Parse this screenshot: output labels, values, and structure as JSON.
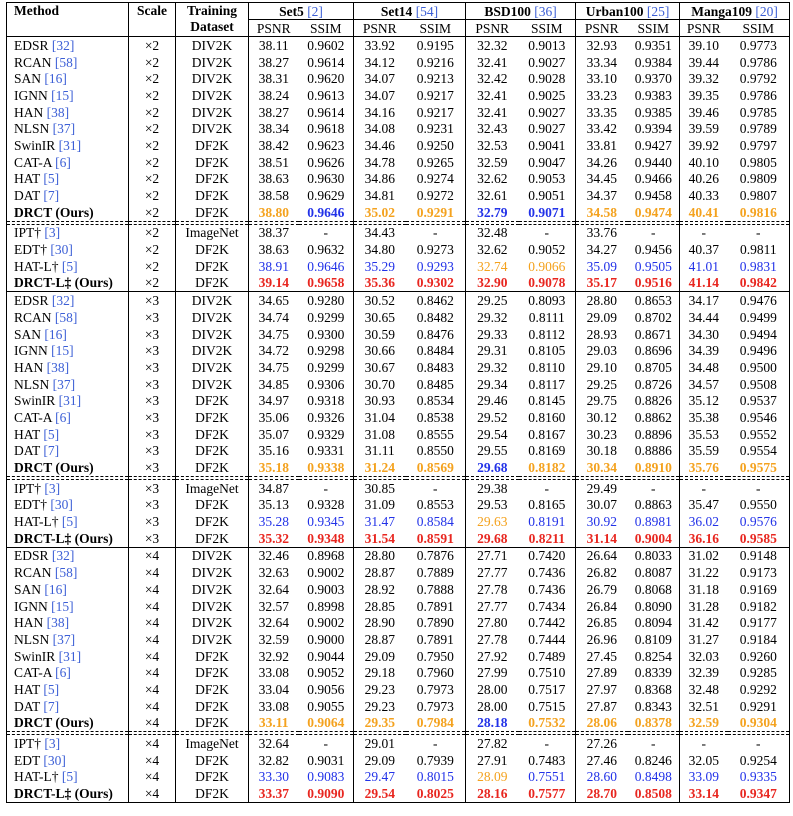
{
  "colors": {
    "red": "#e8261f",
    "blue": "#2232e8",
    "orange": "#f4a21e",
    "citation": "#3c5fd6"
  },
  "header": {
    "method": "Method",
    "scale": "Scale",
    "training": "Training",
    "dataset": "Dataset",
    "benchmarks": [
      {
        "name": "Set5",
        "ref": "[2]"
      },
      {
        "name": "Set14",
        "ref": "[54]"
      },
      {
        "name": "BSD100",
        "ref": "[36]"
      },
      {
        "name": "Urban100",
        "ref": "[25]"
      },
      {
        "name": "Manga109",
        "ref": "[20]"
      }
    ],
    "metrics": [
      "PSNR",
      "SSIM"
    ]
  },
  "sections": [
    {
      "main": [
        {
          "method": "EDSR",
          "ref": "[32]",
          "scale": "×2",
          "dataset": "DIV2K",
          "values": [
            "38.11",
            "0.9602",
            "33.92",
            "0.9195",
            "32.32",
            "0.9013",
            "32.93",
            "0.9351",
            "39.10",
            "0.9773"
          ]
        },
        {
          "method": "RCAN",
          "ref": "[58]",
          "scale": "×2",
          "dataset": "DIV2K",
          "values": [
            "38.27",
            "0.9614",
            "34.12",
            "0.9216",
            "32.41",
            "0.9027",
            "33.34",
            "0.9384",
            "39.44",
            "0.9786"
          ]
        },
        {
          "method": "SAN",
          "ref": "[16]",
          "scale": "×2",
          "dataset": "DIV2K",
          "values": [
            "38.31",
            "0.9620",
            "34.07",
            "0.9213",
            "32.42",
            "0.9028",
            "33.10",
            "0.9370",
            "39.32",
            "0.9792"
          ]
        },
        {
          "method": "IGNN",
          "ref": "[15]",
          "scale": "×2",
          "dataset": "DIV2K",
          "values": [
            "38.24",
            "0.9613",
            "34.07",
            "0.9217",
            "32.41",
            "0.9025",
            "33.23",
            "0.9383",
            "39.35",
            "0.9786"
          ]
        },
        {
          "method": "HAN",
          "ref": "[38]",
          "scale": "×2",
          "dataset": "DIV2K",
          "values": [
            "38.27",
            "0.9614",
            "34.16",
            "0.9217",
            "32.41",
            "0.9027",
            "33.35",
            "0.9385",
            "39.46",
            "0.9785"
          ]
        },
        {
          "method": "NLSN",
          "ref": "[37]",
          "scale": "×2",
          "dataset": "DIV2K",
          "values": [
            "38.34",
            "0.9618",
            "34.08",
            "0.9231",
            "32.43",
            "0.9027",
            "33.42",
            "0.9394",
            "39.59",
            "0.9789"
          ]
        },
        {
          "method": "SwinIR",
          "ref": "[31]",
          "scale": "×2",
          "dataset": "DF2K",
          "values": [
            "38.42",
            "0.9623",
            "34.46",
            "0.9250",
            "32.53",
            "0.9041",
            "33.81",
            "0.9427",
            "39.92",
            "0.9797"
          ]
        },
        {
          "method": "CAT-A",
          "ref": "[6]",
          "scale": "×2",
          "dataset": "DF2K",
          "values": [
            "38.51",
            "0.9626",
            "34.78",
            "0.9265",
            "32.59",
            "0.9047",
            "34.26",
            "0.9440",
            "40.10",
            "0.9805"
          ]
        },
        {
          "method": "HAT",
          "ref": "[5]",
          "scale": "×2",
          "dataset": "DF2K",
          "values": [
            "38.63",
            "0.9630",
            "34.86",
            "0.9274",
            "32.62",
            "0.9053",
            "34.45",
            "0.9466",
            "40.26",
            "0.9809"
          ]
        },
        {
          "method": "DAT",
          "ref": "[7]",
          "scale": "×2",
          "dataset": "DF2K",
          "values": [
            "38.58",
            "0.9629",
            "34.81",
            "0.9272",
            "32.61",
            "0.9051",
            "34.37",
            "0.9458",
            "40.33",
            "0.9807"
          ]
        },
        {
          "method": "DRCT (Ours)",
          "scale": "×2",
          "dataset": "DF2K",
          "bold": true,
          "values": [
            "38.80",
            "0.9646",
            "35.02",
            "0.9291",
            "32.79",
            "0.9071",
            "34.58",
            "0.9474",
            "40.41",
            "0.9816"
          ],
          "hl": [
            "orange",
            "blue",
            "orange",
            "orange",
            "blue",
            "blue",
            "orange",
            "orange",
            "orange",
            "orange"
          ]
        }
      ],
      "extended": [
        {
          "method": "IPT†",
          "ref": "[3]",
          "scale": "×2",
          "dataset": "ImageNet",
          "values": [
            "38.37",
            "-",
            "34.43",
            "-",
            "32.48",
            "-",
            "33.76",
            "-",
            "-",
            "-"
          ]
        },
        {
          "method": "EDT†",
          "ref": "[30]",
          "scale": "×2",
          "dataset": "DF2K",
          "values": [
            "38.63",
            "0.9632",
            "34.80",
            "0.9273",
            "32.62",
            "0.9052",
            "34.27",
            "0.9456",
            "40.37",
            "0.9811"
          ]
        },
        {
          "method": "HAT-L†",
          "ref": "[5]",
          "scale": "×2",
          "dataset": "DF2K",
          "values": [
            "38.91",
            "0.9646",
            "35.29",
            "0.9293",
            "32.74",
            "0.9066",
            "35.09",
            "0.9505",
            "41.01",
            "0.9831"
          ],
          "hl": [
            "blue",
            "blue",
            "blue",
            "blue",
            "orange",
            "orange",
            "blue",
            "blue",
            "blue",
            "blue"
          ]
        },
        {
          "method": "DRCT-L‡ (Ours)",
          "scale": "×2",
          "dataset": "DF2K",
          "bold": true,
          "values": [
            "39.14",
            "0.9658",
            "35.36",
            "0.9302",
            "32.90",
            "0.9078",
            "35.17",
            "0.9516",
            "41.14",
            "0.9842"
          ],
          "hl": [
            "red",
            "red",
            "red",
            "red",
            "red",
            "red",
            "red",
            "red",
            "red",
            "red"
          ]
        }
      ]
    },
    {
      "main": [
        {
          "method": "EDSR",
          "ref": "[32]",
          "scale": "×3",
          "dataset": "DIV2K",
          "values": [
            "34.65",
            "0.9280",
            "30.52",
            "0.8462",
            "29.25",
            "0.8093",
            "28.80",
            "0.8653",
            "34.17",
            "0.9476"
          ]
        },
        {
          "method": "RCAN",
          "ref": "[58]",
          "scale": "×3",
          "dataset": "DIV2K",
          "values": [
            "34.74",
            "0.9299",
            "30.65",
            "0.8482",
            "29.32",
            "0.8111",
            "29.09",
            "0.8702",
            "34.44",
            "0.9499"
          ]
        },
        {
          "method": "SAN",
          "ref": "[16]",
          "scale": "×3",
          "dataset": "DIV2K",
          "values": [
            "34.75",
            "0.9300",
            "30.59",
            "0.8476",
            "29.33",
            "0.8112",
            "28.93",
            "0.8671",
            "34.30",
            "0.9494"
          ]
        },
        {
          "method": "IGNN",
          "ref": "[15]",
          "scale": "×3",
          "dataset": "DIV2K",
          "values": [
            "34.72",
            "0.9298",
            "30.66",
            "0.8484",
            "29.31",
            "0.8105",
            "29.03",
            "0.8696",
            "34.39",
            "0.9496"
          ]
        },
        {
          "method": "HAN",
          "ref": "[38]",
          "scale": "×3",
          "dataset": "DIV2K",
          "values": [
            "34.75",
            "0.9299",
            "30.67",
            "0.8483",
            "29.32",
            "0.8110",
            "29.10",
            "0.8705",
            "34.48",
            "0.9500"
          ]
        },
        {
          "method": "NLSN",
          "ref": "[37]",
          "scale": "×3",
          "dataset": "DIV2K",
          "values": [
            "34.85",
            "0.9306",
            "30.70",
            "0.8485",
            "29.34",
            "0.8117",
            "29.25",
            "0.8726",
            "34.57",
            "0.9508"
          ]
        },
        {
          "method": "SwinIR",
          "ref": "[31]",
          "scale": "×3",
          "dataset": "DF2K",
          "values": [
            "34.97",
            "0.9318",
            "30.93",
            "0.8534",
            "29.46",
            "0.8145",
            "29.75",
            "0.8826",
            "35.12",
            "0.9537"
          ]
        },
        {
          "method": "CAT-A",
          "ref": "[6]",
          "scale": "×3",
          "dataset": "DF2K",
          "values": [
            "35.06",
            "0.9326",
            "31.04",
            "0.8538",
            "29.52",
            "0.8160",
            "30.12",
            "0.8862",
            "35.38",
            "0.9546"
          ]
        },
        {
          "method": "HAT",
          "ref": "[5]",
          "scale": "×3",
          "dataset": "DF2K",
          "values": [
            "35.07",
            "0.9329",
            "31.08",
            "0.8555",
            "29.54",
            "0.8167",
            "30.23",
            "0.8896",
            "35.53",
            "0.9552"
          ]
        },
        {
          "method": "DAT",
          "ref": "[7]",
          "scale": "×3",
          "dataset": "DF2K",
          "values": [
            "35.16",
            "0.9331",
            "31.11",
            "0.8550",
            "29.55",
            "0.8169",
            "30.18",
            "0.8886",
            "35.59",
            "0.9554"
          ]
        },
        {
          "method": "DRCT (Ours)",
          "scale": "×3",
          "dataset": "DF2K",
          "bold": true,
          "values": [
            "35.18",
            "0.9338",
            "31.24",
            "0.8569",
            "29.68",
            "0.8182",
            "30.34",
            "0.8910",
            "35.76",
            "0.9575"
          ],
          "hl": [
            "orange",
            "orange",
            "orange",
            "orange",
            "blue",
            "orange",
            "orange",
            "orange",
            "orange",
            "orange"
          ]
        }
      ],
      "extended": [
        {
          "method": "IPT†",
          "ref": "[3]",
          "scale": "×3",
          "dataset": "ImageNet",
          "values": [
            "34.87",
            "-",
            "30.85",
            "-",
            "29.38",
            "-",
            "29.49",
            "-",
            "-",
            "-"
          ]
        },
        {
          "method": "EDT†",
          "ref": "[30]",
          "scale": "×3",
          "dataset": "DF2K",
          "values": [
            "35.13",
            "0.9328",
            "31.09",
            "0.8553",
            "29.53",
            "0.8165",
            "30.07",
            "0.8863",
            "35.47",
            "0.9550"
          ]
        },
        {
          "method": "HAT-L†",
          "ref": "[5]",
          "scale": "×3",
          "dataset": "DF2K",
          "values": [
            "35.28",
            "0.9345",
            "31.47",
            "0.8584",
            "29.63",
            "0.8191",
            "30.92",
            "0.8981",
            "36.02",
            "0.9576"
          ],
          "hl": [
            "blue",
            "blue",
            "blue",
            "blue",
            "orange",
            "blue",
            "blue",
            "blue",
            "blue",
            "blue"
          ]
        },
        {
          "method": "DRCT-L‡ (Ours)",
          "scale": "×3",
          "dataset": "DF2K",
          "bold": true,
          "values": [
            "35.32",
            "0.9348",
            "31.54",
            "0.8591",
            "29.68",
            "0.8211",
            "31.14",
            "0.9004",
            "36.16",
            "0.9585"
          ],
          "hl": [
            "red",
            "red",
            "red",
            "red",
            "red",
            "red",
            "red",
            "red",
            "red",
            "red"
          ]
        }
      ]
    },
    {
      "main": [
        {
          "method": "EDSR",
          "ref": "[32]",
          "scale": "×4",
          "dataset": "DIV2K",
          "values": [
            "32.46",
            "0.8968",
            "28.80",
            "0.7876",
            "27.71",
            "0.7420",
            "26.64",
            "0.8033",
            "31.02",
            "0.9148"
          ]
        },
        {
          "method": "RCAN",
          "ref": "[58]",
          "scale": "×4",
          "dataset": "DIV2K",
          "values": [
            "32.63",
            "0.9002",
            "28.87",
            "0.7889",
            "27.77",
            "0.7436",
            "26.82",
            "0.8087",
            "31.22",
            "0.9173"
          ]
        },
        {
          "method": "SAN",
          "ref": "[16]",
          "scale": "×4",
          "dataset": "DIV2K",
          "values": [
            "32.64",
            "0.9003",
            "28.92",
            "0.7888",
            "27.78",
            "0.7436",
            "26.79",
            "0.8068",
            "31.18",
            "0.9169"
          ]
        },
        {
          "method": "IGNN",
          "ref": "[15]",
          "scale": "×4",
          "dataset": "DIV2K",
          "values": [
            "32.57",
            "0.8998",
            "28.85",
            "0.7891",
            "27.77",
            "0.7434",
            "26.84",
            "0.8090",
            "31.28",
            "0.9182"
          ]
        },
        {
          "method": "HAN",
          "ref": "[38]",
          "scale": "×4",
          "dataset": "DIV2K",
          "values": [
            "32.64",
            "0.9002",
            "28.90",
            "0.7890",
            "27.80",
            "0.7442",
            "26.85",
            "0.8094",
            "31.42",
            "0.9177"
          ]
        },
        {
          "method": "NLSN",
          "ref": "[37]",
          "scale": "×4",
          "dataset": "DIV2K",
          "values": [
            "32.59",
            "0.9000",
            "28.87",
            "0.7891",
            "27.78",
            "0.7444",
            "26.96",
            "0.8109",
            "31.27",
            "0.9184"
          ]
        },
        {
          "method": "SwinIR",
          "ref": "[31]",
          "scale": "×4",
          "dataset": "DF2K",
          "values": [
            "32.92",
            "0.9044",
            "29.09",
            "0.7950",
            "27.92",
            "0.7489",
            "27.45",
            "0.8254",
            "32.03",
            "0.9260"
          ]
        },
        {
          "method": "CAT-A",
          "ref": "[6]",
          "scale": "×4",
          "dataset": "DF2K",
          "values": [
            "33.08",
            "0.9052",
            "29.18",
            "0.7960",
            "27.99",
            "0.7510",
            "27.89",
            "0.8339",
            "32.39",
            "0.9285"
          ]
        },
        {
          "method": "HAT",
          "ref": "[5]",
          "scale": "×4",
          "dataset": "DF2K",
          "values": [
            "33.04",
            "0.9056",
            "29.23",
            "0.7973",
            "28.00",
            "0.7517",
            "27.97",
            "0.8368",
            "32.48",
            "0.9292"
          ]
        },
        {
          "method": "DAT",
          "ref": "[7]",
          "scale": "×4",
          "dataset": "DF2K",
          "values": [
            "33.08",
            "0.9055",
            "29.23",
            "0.7973",
            "28.00",
            "0.7515",
            "27.87",
            "0.8343",
            "32.51",
            "0.9291"
          ]
        },
        {
          "method": "DRCT (Ours)",
          "scale": "×4",
          "dataset": "DF2K",
          "bold": true,
          "values": [
            "33.11",
            "0.9064",
            "29.35",
            "0.7984",
            "28.18",
            "0.7532",
            "28.06",
            "0.8378",
            "32.59",
            "0.9304"
          ],
          "hl": [
            "orange",
            "orange",
            "orange",
            "orange",
            "blue",
            "orange",
            "orange",
            "orange",
            "orange",
            "orange"
          ]
        }
      ],
      "extended": [
        {
          "method": "IPT†",
          "ref": "[3]",
          "scale": "×4",
          "dataset": "ImageNet",
          "values": [
            "32.64",
            "-",
            "29.01",
            "-",
            "27.82",
            "-",
            "27.26",
            "-",
            "-",
            "-"
          ]
        },
        {
          "method": "EDT",
          "ref": "[30]",
          "scale": "×4",
          "dataset": "DF2K",
          "values": [
            "32.82",
            "0.9031",
            "29.09",
            "0.7939",
            "27.91",
            "0.7483",
            "27.46",
            "0.8246",
            "32.05",
            "0.9254"
          ]
        },
        {
          "method": "HAT-L†",
          "ref": "[5]",
          "scale": "×4",
          "dataset": "DF2K",
          "values": [
            "33.30",
            "0.9083",
            "29.47",
            "0.8015",
            "28.09",
            "0.7551",
            "28.60",
            "0.8498",
            "33.09",
            "0.9335"
          ],
          "hl": [
            "blue",
            "blue",
            "blue",
            "blue",
            "orange",
            "blue",
            "blue",
            "blue",
            "blue",
            "blue"
          ]
        },
        {
          "method": "DRCT-L‡ (Ours)",
          "scale": "×4",
          "dataset": "DF2K",
          "bold": true,
          "values": [
            "33.37",
            "0.9090",
            "29.54",
            "0.8025",
            "28.16",
            "0.7577",
            "28.70",
            "0.8508",
            "33.14",
            "0.9347"
          ],
          "hl": [
            "red",
            "red",
            "red",
            "red",
            "red",
            "red",
            "red",
            "red",
            "red",
            "red"
          ]
        }
      ]
    }
  ]
}
